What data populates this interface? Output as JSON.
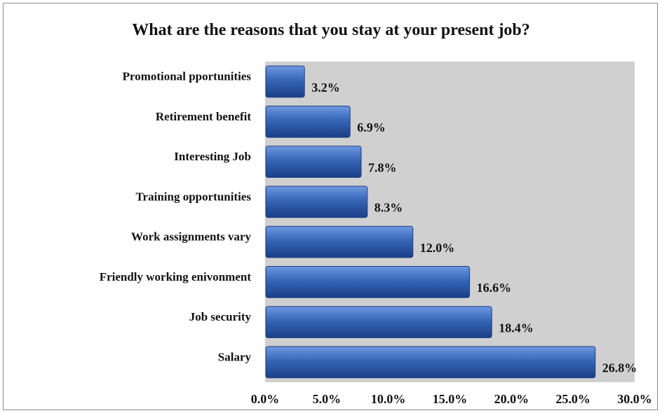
{
  "chart_data": {
    "type": "bar",
    "orientation": "horizontal",
    "title": "What are the reasons that you stay at your present job?",
    "xlabel": "",
    "ylabel": "",
    "categories": [
      "Promotional pportunities",
      "Retirement benefit",
      "Interesting Job",
      "Training opportunities",
      "Work assignments vary",
      "Friendly working enivonment",
      "Job security",
      "Salary"
    ],
    "values": [
      3.2,
      6.9,
      7.8,
      8.3,
      12.0,
      16.6,
      18.4,
      26.8
    ],
    "value_labels": [
      "3.2%",
      "6.9%",
      "7.8%",
      "8.3%",
      "12.0%",
      "16.6%",
      "18.4%",
      "26.8%"
    ],
    "xlim": [
      0,
      30
    ],
    "xticks": [
      0,
      5,
      10,
      15,
      20,
      25,
      30
    ],
    "xtick_labels": [
      "0.0%",
      "5.0%",
      "10.0%",
      "15.0%",
      "20.0%",
      "25.0%",
      "30.0%"
    ],
    "grid": false,
    "legend": "none",
    "colors": {
      "bar": "#3566b8",
      "bar_dark": "#1d3f85",
      "plot_background": "#d0d0d0"
    }
  }
}
